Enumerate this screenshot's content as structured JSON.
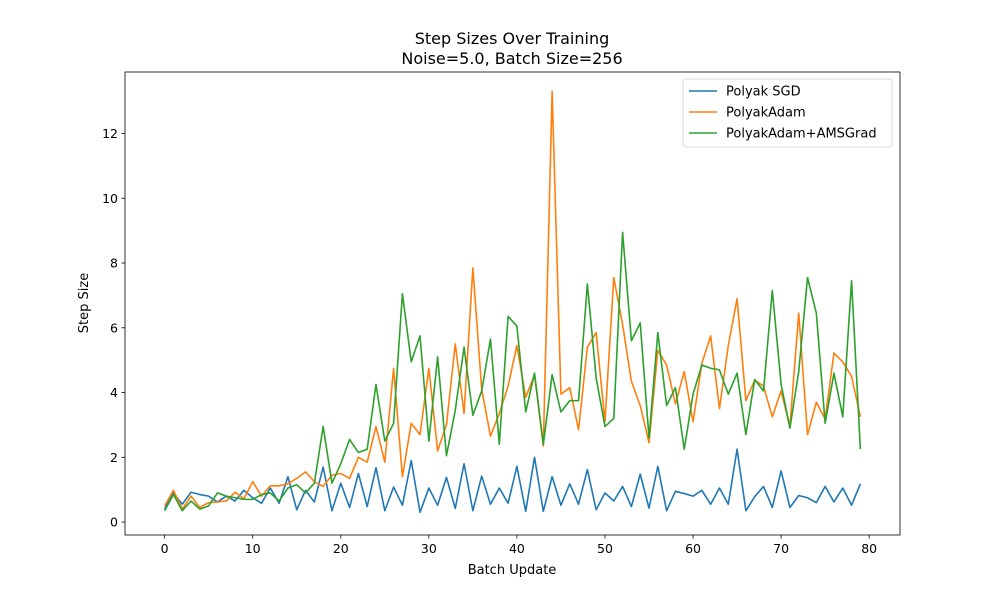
{
  "chart_data": {
    "type": "line",
    "title": "Step Sizes Over Training",
    "subtitle": "Noise=5.0, Batch Size=256",
    "xlabel": "Batch Update",
    "ylabel": "Step Size",
    "xlim": [
      -4.5,
      83.5
    ],
    "ylim": [
      -0.4,
      13.9
    ],
    "xticks": [
      0,
      10,
      20,
      30,
      40,
      50,
      60,
      70,
      80
    ],
    "yticks": [
      0,
      2,
      4,
      6,
      8,
      10,
      12
    ],
    "grid": false,
    "legend_position": "upper right",
    "series": [
      {
        "name": "Polyak SGD",
        "color": "#1f77b4",
        "values": [
          0.4,
          0.9,
          0.55,
          0.92,
          0.85,
          0.8,
          0.62,
          0.8,
          0.65,
          0.98,
          0.75,
          0.58,
          1.05,
          0.58,
          1.4,
          0.38,
          0.98,
          0.62,
          1.7,
          0.35,
          1.2,
          0.45,
          1.5,
          0.48,
          1.68,
          0.35,
          1.08,
          0.52,
          1.9,
          0.3,
          1.05,
          0.52,
          1.38,
          0.42,
          1.8,
          0.35,
          1.42,
          0.55,
          1.05,
          0.58,
          1.72,
          0.33,
          2.0,
          0.33,
          1.4,
          0.52,
          1.18,
          0.55,
          1.62,
          0.38,
          0.9,
          0.65,
          1.1,
          0.48,
          1.48,
          0.43,
          1.72,
          0.35,
          0.95,
          0.88,
          0.8,
          0.98,
          0.55,
          1.05,
          0.55,
          2.25,
          0.35,
          0.78,
          1.1,
          0.45,
          1.58,
          0.45,
          0.82,
          0.75,
          0.6,
          1.1,
          0.62,
          1.05,
          0.52,
          1.18
        ]
      },
      {
        "name": "PolyakAdam",
        "color": "#ff7f0e",
        "values": [
          0.5,
          0.98,
          0.4,
          0.8,
          0.45,
          0.6,
          0.62,
          0.65,
          0.92,
          0.72,
          1.25,
          0.8,
          1.12,
          1.12,
          1.18,
          1.35,
          1.55,
          1.25,
          1.1,
          1.45,
          1.5,
          1.35,
          2.0,
          1.85,
          2.95,
          1.85,
          4.75,
          1.4,
          3.05,
          2.7,
          4.75,
          2.2,
          3.0,
          5.5,
          3.35,
          7.85,
          4.1,
          2.65,
          3.35,
          4.2,
          5.45,
          3.85,
          4.55,
          2.35,
          13.3,
          3.95,
          4.15,
          2.85,
          5.4,
          5.85,
          3.1,
          7.55,
          6.1,
          4.35,
          3.6,
          2.45,
          5.3,
          4.85,
          3.65,
          4.65,
          3.1,
          4.9,
          5.75,
          3.5,
          5.45,
          6.9,
          3.75,
          4.38,
          4.2,
          3.25,
          4.05,
          2.95,
          6.45,
          2.7,
          3.7,
          3.18,
          5.22,
          4.95,
          4.5,
          3.25
        ]
      },
      {
        "name": "PolyakAdam+AMSGrad",
        "color": "#2ca02c",
        "values": [
          0.35,
          0.85,
          0.35,
          0.65,
          0.4,
          0.5,
          0.9,
          0.8,
          0.75,
          0.7,
          0.7,
          0.85,
          0.9,
          0.65,
          1.05,
          1.15,
          0.9,
          1.2,
          2.95,
          1.2,
          1.8,
          2.55,
          2.15,
          2.25,
          4.25,
          2.5,
          3.05,
          7.05,
          4.95,
          5.75,
          2.5,
          5.1,
          2.05,
          3.45,
          5.4,
          3.3,
          4.05,
          5.65,
          2.4,
          6.35,
          6.05,
          3.4,
          4.6,
          2.4,
          4.55,
          3.4,
          3.75,
          3.75,
          7.35,
          4.45,
          2.95,
          3.2,
          8.95,
          5.6,
          6.15,
          2.6,
          5.85,
          3.6,
          4.15,
          2.25,
          3.95,
          4.85,
          4.75,
          4.7,
          3.95,
          4.6,
          2.7,
          4.4,
          4.05,
          7.15,
          4.25,
          2.9,
          4.65,
          7.55,
          6.45,
          3.05,
          4.6,
          3.25,
          7.45,
          2.25
        ]
      }
    ]
  }
}
